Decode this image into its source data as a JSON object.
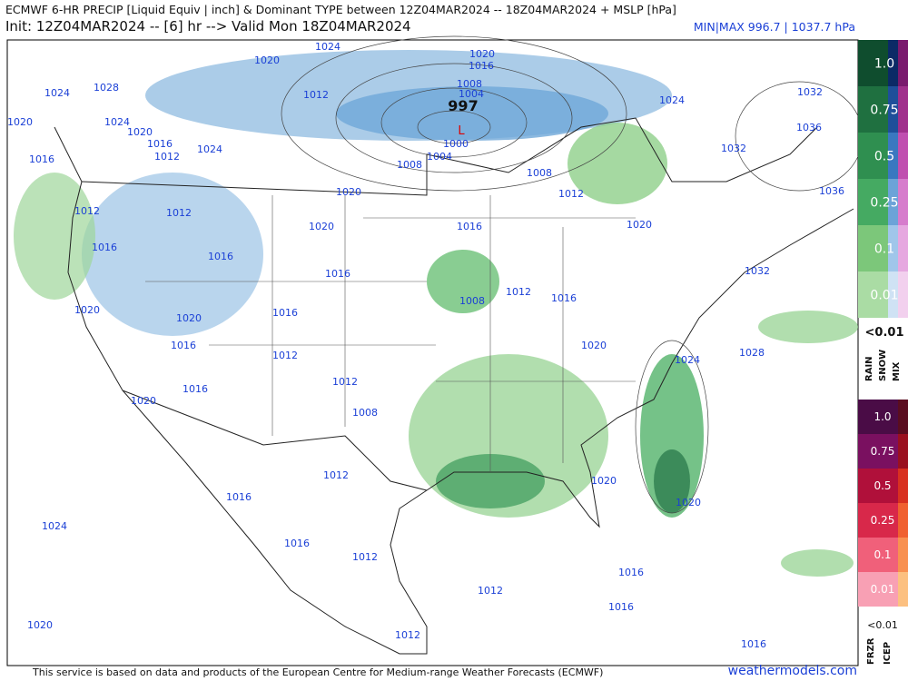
{
  "header": {
    "title": "ECMWF 6-HR PRECIP [Liquid Equiv | inch] & Dominant TYPE between 12Z04MAR2024 -- 18Z04MAR2024 + MSLP [hPa]",
    "init_line": "Init: 12Z04MAR2024 -- [6] hr --> Valid Mon 18Z04MAR2024",
    "minmax": "MIN|MAX 996.7 | 1037.7 hPa"
  },
  "map": {
    "low_pressure": "997",
    "low_symbol": "L",
    "isobar_labels": [
      "1024",
      "1020",
      "1020",
      "1016",
      "1028",
      "1024",
      "1008",
      "1004",
      "1012",
      "1024",
      "1032",
      "1020",
      "1024",
      "1020",
      "1016",
      "1012",
      "1024",
      "1036",
      "1000",
      "1004",
      "1032",
      "1016",
      "1008",
      "1008",
      "1020",
      "1012",
      "1036",
      "1012",
      "1012",
      "1020",
      "1016",
      "1020",
      "1016",
      "1016",
      "1016",
      "1032",
      "1012",
      "1016",
      "1008",
      "1020",
      "1016",
      "1020",
      "1016",
      "1012",
      "1020",
      "1028",
      "1024",
      "1012",
      "1016",
      "1020",
      "1008",
      "1012",
      "1020",
      "1016",
      "1020",
      "1024",
      "1016",
      "1012",
      "1016",
      "1012",
      "1016",
      "1020",
      "1012",
      "1016"
    ]
  },
  "legend_rain": {
    "levels": [
      "1.0",
      "0.75",
      "0.5",
      "0.25",
      "0.1",
      "0.01"
    ],
    "below": "<0.01",
    "types": [
      "RAIN",
      "SNOW",
      "MIX"
    ]
  },
  "legend_ice": {
    "levels": [
      "1.0",
      "0.75",
      "0.5",
      "0.25",
      "0.1",
      "0.01"
    ],
    "below": "<0.01",
    "types": [
      "FRZR",
      "ICEP"
    ]
  },
  "footer": {
    "disclaimer": "This service is based on data and products of the European Centre for Medium-range Weather Forecasts (ECMWF)",
    "brand": "weathermodels.com"
  }
}
